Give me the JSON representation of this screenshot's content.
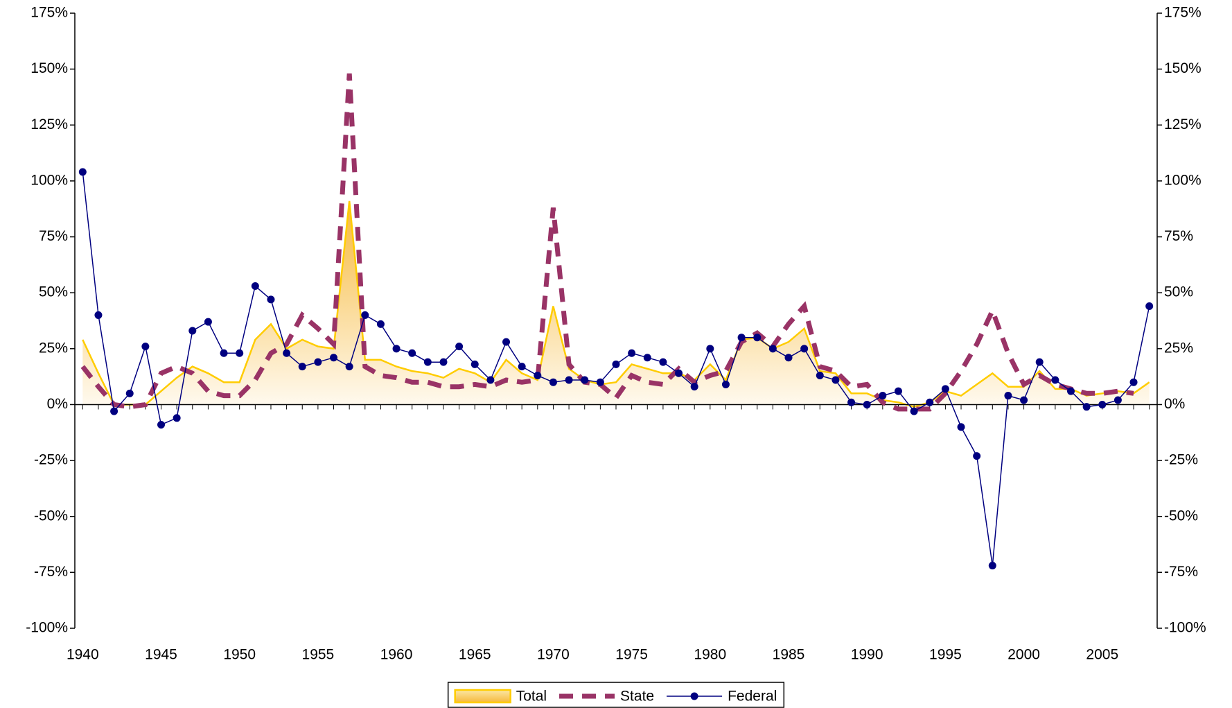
{
  "chart_data": {
    "type": "line",
    "x": [
      1940,
      1941,
      1942,
      1943,
      1944,
      1945,
      1946,
      1947,
      1948,
      1949,
      1950,
      1951,
      1952,
      1953,
      1954,
      1955,
      1956,
      1957,
      1958,
      1959,
      1960,
      1961,
      1962,
      1963,
      1964,
      1965,
      1966,
      1967,
      1968,
      1969,
      1970,
      1971,
      1972,
      1973,
      1974,
      1975,
      1976,
      1977,
      1978,
      1979,
      1980,
      1981,
      1982,
      1983,
      1984,
      1985,
      1986,
      1987,
      1988,
      1989,
      1990,
      1991,
      1992,
      1993,
      1994,
      1995,
      1996,
      1997,
      1998,
      1999,
      2000,
      2001,
      2002,
      2003,
      2004,
      2005,
      2006,
      2007,
      2008
    ],
    "xlim": [
      1939.5,
      2008.5
    ],
    "xticks": [
      1940,
      1945,
      1950,
      1955,
      1960,
      1965,
      1970,
      1975,
      1980,
      1985,
      1990,
      1995,
      2000,
      2005
    ],
    "ylim": [
      -100,
      175
    ],
    "yticks": [
      {
        "value": -100,
        "label": "-100%"
      },
      {
        "value": -75,
        "label": "-75%"
      },
      {
        "value": -50,
        "label": "-50%"
      },
      {
        "value": -25,
        "label": "-25%"
      },
      {
        "value": 0,
        "label": "0%"
      },
      {
        "value": 25,
        "label": "25%"
      },
      {
        "value": 50,
        "label": "50%"
      },
      {
        "value": 75,
        "label": "75%"
      },
      {
        "value": 100,
        "label": "100%"
      },
      {
        "value": 125,
        "label": "125%"
      },
      {
        "value": 150,
        "label": "150%"
      },
      {
        "value": 175,
        "label": "175%"
      }
    ],
    "y2lim": [
      -100,
      175
    ],
    "y2ticks": [
      {
        "value": -100,
        "label": "-100%"
      },
      {
        "value": -75,
        "label": "-75%"
      },
      {
        "value": -50,
        "label": "-50%"
      },
      {
        "value": -25,
        "label": "-25%"
      },
      {
        "value": 0,
        "label": "0%"
      },
      {
        "value": 25,
        "label": "25%"
      },
      {
        "value": 50,
        "label": "50%"
      },
      {
        "value": 75,
        "label": "75%"
      },
      {
        "value": 100,
        "label": "100%"
      },
      {
        "value": 125,
        "label": "125%"
      },
      {
        "value": 150,
        "label": "150%"
      },
      {
        "value": 175,
        "label": "175%"
      }
    ],
    "grid": false,
    "legend": "bottom",
    "series": [
      {
        "name": "Total",
        "color": "#ffcc00",
        "style": "area",
        "values": [
          29,
          14,
          0,
          0,
          0,
          6,
          12,
          17,
          14,
          10,
          10,
          29,
          36,
          25,
          29,
          26,
          25,
          91,
          20,
          20,
          17,
          15,
          14,
          12,
          16,
          14,
          10,
          20,
          14,
          11,
          44,
          16,
          11,
          9,
          10,
          18,
          16,
          14,
          14,
          11,
          18,
          11,
          29,
          30,
          25,
          28,
          34,
          15,
          14,
          5,
          5,
          2,
          1,
          -1,
          1,
          6,
          4,
          9,
          14,
          8,
          8,
          15,
          7,
          7,
          4,
          5,
          6,
          5,
          10
        ]
      },
      {
        "name": "State",
        "color": "#993366",
        "style": "dashed",
        "values": [
          17,
          8,
          0,
          -1,
          0,
          14,
          17,
          14,
          6,
          4,
          4,
          11,
          23,
          27,
          40,
          34,
          27,
          148,
          17,
          13,
          12,
          10,
          10,
          8,
          8,
          9,
          8,
          11,
          10,
          11,
          88,
          18,
          10,
          9,
          3,
          13,
          10,
          9,
          16,
          10,
          13,
          15,
          28,
          32,
          26,
          36,
          44,
          17,
          15,
          8,
          9,
          1,
          -2,
          -2,
          -2,
          5,
          15,
          27,
          42,
          23,
          9,
          13,
          9,
          7,
          5,
          5,
          6,
          5,
          null
        ]
      },
      {
        "name": "Federal",
        "color": "#000080",
        "style": "marker",
        "values": [
          104,
          40,
          -3,
          5,
          26,
          -9,
          -6,
          33,
          37,
          23,
          23,
          53,
          47,
          23,
          17,
          19,
          21,
          17,
          40,
          36,
          25,
          23,
          19,
          19,
          26,
          18,
          11,
          28,
          17,
          13,
          10,
          11,
          11,
          10,
          18,
          23,
          21,
          19,
          14,
          8,
          25,
          9,
          30,
          30,
          25,
          21,
          25,
          13,
          11,
          1,
          0,
          4,
          6,
          -3,
          1,
          7,
          -10,
          -23,
          -72,
          4,
          2,
          19,
          11,
          6,
          -1,
          0,
          2,
          10,
          44
        ]
      }
    ]
  }
}
